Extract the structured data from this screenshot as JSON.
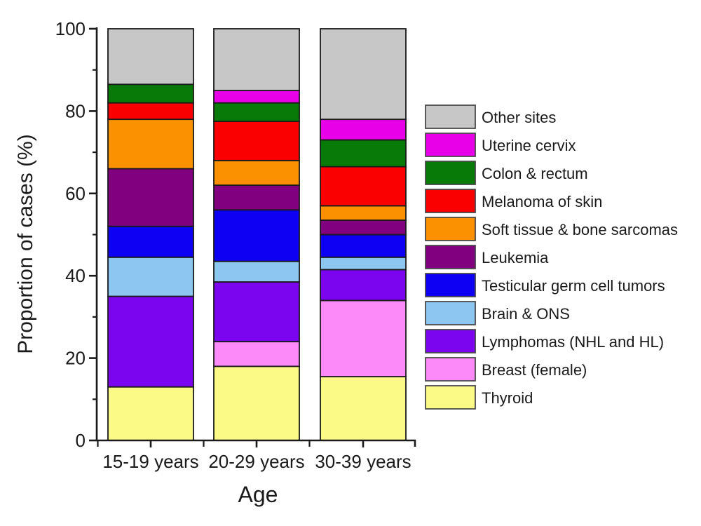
{
  "chart_data": {
    "type": "bar",
    "stacked": true,
    "title": "",
    "xlabel": "Age",
    "ylabel": "Proportion of cases (%)",
    "ylim": [
      0,
      100
    ],
    "yticks": [
      0,
      20,
      40,
      60,
      80,
      100
    ],
    "y_minor_ticks": [
      10,
      30,
      50,
      70,
      90
    ],
    "grid": false,
    "legend_position": "right",
    "legend_order_top_to_bottom": [
      "Other sites",
      "Uterine cervix",
      "Colon & rectum",
      "Melanoma of skin",
      "Soft tissue & bone sarcomas",
      "Leukemia",
      "Testicular germ cell tumors",
      "Brain & ONS",
      "Lymphomas (NHL and HL)",
      "Breast (female)",
      "Thyroid"
    ],
    "categories": [
      "15-19 years",
      "20-29 years",
      "30-39 years"
    ],
    "series": [
      {
        "name": "Thyroid",
        "color": "#FBFA86",
        "values": [
          13,
          18,
          15.5
        ]
      },
      {
        "name": "Breast (female)",
        "color": "#FC8AF8",
        "values": [
          0,
          6,
          18.5
        ]
      },
      {
        "name": "Lymphomas (NHL and HL)",
        "color": "#7A05EE",
        "values": [
          22,
          14.5,
          7.5
        ]
      },
      {
        "name": "Brain & ONS",
        "color": "#8DC6F0",
        "values": [
          9.5,
          5,
          3
        ]
      },
      {
        "name": "Testicular germ cell tumors",
        "color": "#0E00F2",
        "values": [
          7.5,
          12.5,
          5.5
        ]
      },
      {
        "name": "Leukemia",
        "color": "#800080",
        "values": [
          14,
          6,
          3.5
        ]
      },
      {
        "name": "Soft tissue & bone sarcomas",
        "color": "#FB9100",
        "values": [
          12,
          6,
          3.5
        ]
      },
      {
        "name": "Melanoma of skin",
        "color": "#FA0000",
        "values": [
          4,
          9.5,
          9.5
        ]
      },
      {
        "name": "Colon & rectum",
        "color": "#077A07",
        "values": [
          4.5,
          4.5,
          6.5
        ]
      },
      {
        "name": "Uterine cervix",
        "color": "#E800E8",
        "values": [
          0,
          3,
          5
        ]
      },
      {
        "name": "Other sites",
        "color": "#C7C7C7",
        "values": [
          13.5,
          15,
          22
        ]
      }
    ]
  }
}
